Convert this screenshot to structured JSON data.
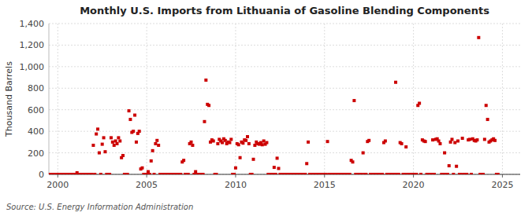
{
  "chart_data": {
    "type": "scatter",
    "title": "Monthly U.S. Imports from Lithuania of Gasoline Blending Components",
    "ylabel": "Thousand Barrels",
    "annotations": [
      "Source: U.S. Energy Information Administration"
    ],
    "color": "#CC0000",
    "marker": "square",
    "grid": true,
    "xlim": [
      1999.5,
      2026.0
    ],
    "ylim": [
      0,
      1400
    ],
    "xticks": [
      2000,
      2005,
      2010,
      2015,
      2020,
      2025
    ],
    "yticks": [
      0,
      200,
      400,
      600,
      800,
      {
        "value": 1000,
        "label": "1,000"
      },
      {
        "value": 1200,
        "label": "1,200"
      },
      {
        "value": 1400,
        "label": "1,400"
      }
    ],
    "x": [
      1999.583,
      1999.667,
      1999.75,
      1999.833,
      1999.917,
      2000.0,
      2000.083,
      2000.167,
      2000.25,
      2000.333,
      2000.417,
      2000.5,
      2000.583,
      2000.667,
      2000.75,
      2000.833,
      2000.917,
      2001.0,
      2001.083,
      2001.167,
      2001.25,
      2001.333,
      2001.417,
      2001.5,
      2001.583,
      2001.667,
      2001.75,
      2001.833,
      2001.917,
      2002.0,
      2002.083,
      2002.167,
      2002.25,
      2002.333,
      2002.417,
      2002.5,
      2002.583,
      2002.667,
      2002.75,
      2002.833,
      2002.917,
      2003.0,
      2003.083,
      2003.167,
      2003.25,
      2003.333,
      2003.417,
      2003.5,
      2003.583,
      2003.667,
      2003.75,
      2003.833,
      2003.917,
      2004.0,
      2004.083,
      2004.167,
      2004.25,
      2004.333,
      2004.417,
      2004.5,
      2004.583,
      2004.667,
      2004.75,
      2004.833,
      2004.917,
      2005.0,
      2005.083,
      2005.167,
      2005.25,
      2005.333,
      2005.417,
      2005.5,
      2005.583,
      2005.667,
      2005.75,
      2005.833,
      2005.917,
      2006.0,
      2006.083,
      2006.167,
      2006.25,
      2006.333,
      2006.417,
      2006.5,
      2006.583,
      2006.667,
      2006.75,
      2006.833,
      2006.917,
      2007.0,
      2007.083,
      2007.167,
      2007.25,
      2007.333,
      2007.417,
      2007.5,
      2007.583,
      2007.667,
      2007.75,
      2007.833,
      2007.917,
      2008.0,
      2008.083,
      2008.167,
      2008.25,
      2008.333,
      2008.417,
      2008.5,
      2008.583,
      2008.667,
      2008.75,
      2008.833,
      2008.917,
      2009.0,
      2009.083,
      2009.167,
      2009.25,
      2009.333,
      2009.417,
      2009.5,
      2009.583,
      2009.667,
      2009.75,
      2009.833,
      2009.917,
      2010.0,
      2010.083,
      2010.167,
      2010.25,
      2010.333,
      2010.417,
      2010.5,
      2010.583,
      2010.667,
      2010.75,
      2010.833,
      2010.917,
      2011.0,
      2011.083,
      2011.167,
      2011.25,
      2011.333,
      2011.417,
      2011.5,
      2011.583,
      2011.667,
      2011.75,
      2011.833,
      2011.917,
      2012.0,
      2012.083,
      2012.167,
      2012.25,
      2012.333,
      2012.417,
      2012.5,
      2012.583,
      2012.667,
      2012.75,
      2012.833,
      2012.917,
      2013.0,
      2013.083,
      2013.167,
      2013.25,
      2013.333,
      2013.417,
      2013.5,
      2013.583,
      2013.667,
      2013.75,
      2013.833,
      2013.917,
      2014.0,
      2014.083,
      2014.167,
      2014.25,
      2014.333,
      2014.417,
      2014.5,
      2014.583,
      2014.667,
      2014.75,
      2014.833,
      2014.917,
      2015.0,
      2015.083,
      2015.167,
      2015.25,
      2015.333,
      2015.417,
      2015.5,
      2015.583,
      2015.667,
      2015.75,
      2015.833,
      2015.917,
      2016.0,
      2016.083,
      2016.167,
      2016.25,
      2016.333,
      2016.417,
      2016.5,
      2016.583,
      2016.667,
      2016.75,
      2016.833,
      2016.917,
      2017.0,
      2017.083,
      2017.167,
      2017.25,
      2017.333,
      2017.417,
      2017.5,
      2017.583,
      2017.667,
      2017.75,
      2017.833,
      2017.917,
      2018.0,
      2018.083,
      2018.167,
      2018.25,
      2018.333,
      2018.417,
      2018.5,
      2018.583,
      2018.667,
      2018.75,
      2018.833,
      2018.917,
      2019.0,
      2019.083,
      2019.167,
      2019.25,
      2019.333,
      2019.417,
      2019.5,
      2019.583,
      2019.667,
      2019.75,
      2019.833,
      2019.917,
      2020.0,
      2020.083,
      2020.167,
      2020.25,
      2020.333,
      2020.417,
      2020.5,
      2020.583,
      2020.667,
      2020.75,
      2020.833,
      2020.917,
      2021.0,
      2021.083,
      2021.167,
      2021.25,
      2021.333,
      2021.417,
      2021.5,
      2021.583,
      2021.667,
      2021.75,
      2021.833,
      2021.917,
      2022.0,
      2022.083,
      2022.167,
      2022.25,
      2022.333,
      2022.417,
      2022.5,
      2022.583,
      2022.667,
      2022.75,
      2022.833,
      2022.917,
      2023.0,
      2023.083,
      2023.167,
      2023.25,
      2023.333,
      2023.417,
      2023.5,
      2023.583,
      2023.667,
      2023.75,
      2023.833,
      2023.917,
      2024.0,
      2024.083,
      2024.167,
      2024.25,
      2024.333,
      2024.417,
      2024.5,
      2024.583,
      2024.667,
      2024.75
    ],
    "values": [
      0,
      0,
      0,
      0,
      0,
      0,
      0,
      0,
      0,
      0,
      0,
      0,
      0,
      0,
      0,
      0,
      0,
      0,
      15,
      0,
      0,
      0,
      0,
      0,
      0,
      0,
      0,
      0,
      0,
      270,
      0,
      375,
      420,
      200,
      0,
      280,
      340,
      210,
      0,
      0,
      0,
      340,
      300,
      270,
      310,
      285,
      340,
      310,
      155,
      175,
      0,
      0,
      0,
      590,
      510,
      390,
      400,
      550,
      300,
      380,
      400,
      50,
      60,
      0,
      0,
      0,
      25,
      0,
      125,
      220,
      0,
      285,
      315,
      270,
      0,
      0,
      0,
      0,
      0,
      0,
      0,
      0,
      0,
      0,
      0,
      0,
      0,
      0,
      0,
      115,
      130,
      0,
      0,
      0,
      285,
      300,
      270,
      0,
      25,
      0,
      0,
      0,
      0,
      0,
      490,
      875,
      650,
      640,
      300,
      320,
      310,
      0,
      0,
      285,
      325,
      310,
      295,
      330,
      315,
      285,
      300,
      295,
      325,
      0,
      0,
      60,
      285,
      275,
      155,
      300,
      290,
      320,
      315,
      350,
      285,
      0,
      0,
      140,
      270,
      300,
      285,
      280,
      295,
      275,
      310,
      280,
      295,
      0,
      0,
      0,
      0,
      65,
      0,
      150,
      55,
      0,
      0,
      0,
      0,
      0,
      0,
      0,
      0,
      0,
      0,
      0,
      0,
      0,
      0,
      0,
      0,
      0,
      0,
      100,
      300,
      0,
      0,
      0,
      0,
      0,
      0,
      0,
      0,
      0,
      0,
      0,
      0,
      305,
      0,
      0,
      0,
      0,
      0,
      0,
      0,
      0,
      0,
      0,
      0,
      0,
      0,
      0,
      0,
      130,
      115,
      685,
      0,
      0,
      0,
      0,
      0,
      200,
      0,
      0,
      305,
      315,
      0,
      0,
      0,
      0,
      0,
      0,
      0,
      0,
      0,
      295,
      310,
      0,
      0,
      0,
      0,
      0,
      0,
      855,
      0,
      0,
      295,
      285,
      0,
      0,
      255,
      0,
      0,
      0,
      0,
      0,
      0,
      0,
      640,
      660,
      0,
      320,
      310,
      305,
      0,
      0,
      0,
      0,
      320,
      0,
      325,
      330,
      310,
      285,
      0,
      0,
      200,
      0,
      0,
      80,
      300,
      325,
      0,
      295,
      75,
      310,
      0,
      0,
      335,
      0,
      0,
      0,
      320,
      325,
      0,
      330,
      315,
      310,
      320,
      1270,
      0,
      0,
      0,
      325,
      640,
      510,
      300,
      310,
      320,
      330,
      315,
      0,
      0
    ]
  }
}
